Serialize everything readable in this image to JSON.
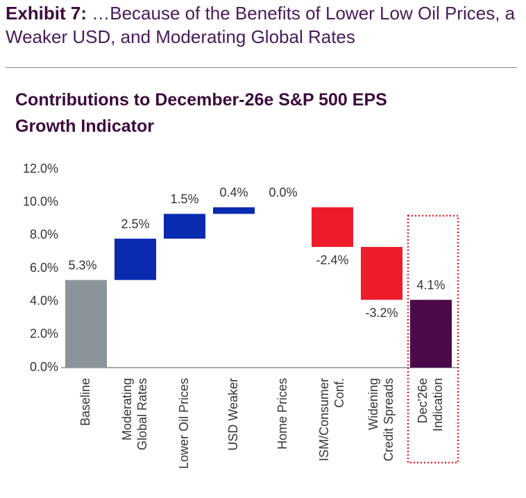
{
  "header": {
    "label": "Exhibit 7:",
    "title": "…Because of the Benefits of Lower Low Oil Prices, a Weaker USD, and Moderating Global Rates"
  },
  "chart_data": {
    "type": "waterfall",
    "title": "Contributions to December-26e S&P 500 EPS Growth Indicator",
    "categories": [
      [
        "Baseline"
      ],
      [
        "Moderating",
        "Global Rates"
      ],
      [
        "Lower Oil Prices"
      ],
      [
        "USD Weaker"
      ],
      [
        "Home Prices"
      ],
      [
        "ISM/Consumer",
        "Conf."
      ],
      [
        "Widening",
        "Credit Spreads"
      ],
      [
        "Dec'26e",
        "Indication"
      ]
    ],
    "values": [
      5.3,
      2.5,
      1.5,
      0.4,
      0.0,
      -2.4,
      -3.2,
      4.1
    ],
    "value_labels": [
      "5.3%",
      "2.5%",
      "1.5%",
      "0.4%",
      "0.0%",
      "-2.4%",
      "-3.2%",
      "4.1%"
    ],
    "is_total": [
      true,
      false,
      false,
      false,
      false,
      false,
      false,
      true
    ],
    "colors": [
      "#8b949a",
      "#0a2ab0",
      "#0a2ab0",
      "#0a2ab0",
      "#0a2ab0",
      "#ec1c2b",
      "#ec1c2b",
      "#4a0a4a"
    ],
    "ylim": [
      0,
      12
    ],
    "yticks": [
      {
        "value": 0,
        "label": "0.0%"
      },
      {
        "value": 2,
        "label": "2.0%"
      },
      {
        "value": 4,
        "label": "4.0%"
      },
      {
        "value": 6,
        "label": "6.0%"
      },
      {
        "value": 8,
        "label": "8.0%"
      },
      {
        "value": 10,
        "label": "10.0%"
      },
      {
        "value": 12,
        "label": "12.0%"
      }
    ]
  }
}
